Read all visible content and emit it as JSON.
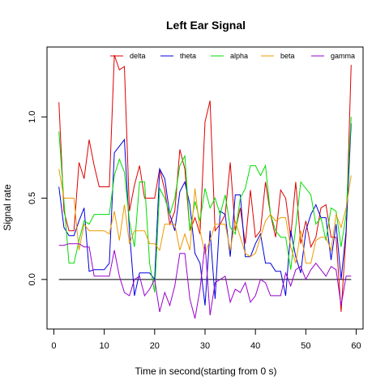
{
  "chart_data": {
    "type": "line",
    "title": "Left Ear Signal",
    "xlabel": "Time in second(starting from 0 s)",
    "ylabel": "Signal rate",
    "xlim": [
      -1.36,
      61.36
    ],
    "ylim": [
      -0.305,
      1.43
    ],
    "x_ticks": [
      0,
      10,
      20,
      30,
      40,
      50,
      60
    ],
    "y_ticks": [
      0.0,
      0.5,
      1.0
    ],
    "y_tick_labels": [
      "0.0",
      "0.5",
      "1.0"
    ],
    "legend_position": "top-right",
    "reference_line": {
      "y": 0,
      "x_range": [
        1,
        59
      ],
      "color": "#000000"
    },
    "x": [
      1,
      2,
      3,
      4,
      5,
      6,
      7,
      8,
      9,
      10,
      11,
      12,
      13,
      14,
      15,
      16,
      17,
      18,
      19,
      20,
      21,
      22,
      23,
      24,
      25,
      26,
      27,
      28,
      29,
      30,
      31,
      32,
      33,
      34,
      35,
      36,
      37,
      38,
      39,
      40,
      41,
      42,
      43,
      44,
      45,
      46,
      47,
      48,
      49,
      50,
      51,
      52,
      53,
      54,
      55,
      56,
      57,
      58,
      59
    ],
    "series": [
      {
        "name": "delta",
        "color": "#dd0000",
        "values": [
          1.09,
          0.42,
          0.3,
          0.3,
          0.72,
          0.62,
          0.86,
          0.7,
          0.57,
          0.57,
          0.57,
          1.38,
          1.29,
          1.31,
          0.42,
          0.58,
          0.7,
          0.5,
          0.5,
          0.5,
          0.68,
          0.55,
          0.34,
          0.42,
          0.8,
          0.68,
          0.3,
          0.38,
          0.28,
          0.97,
          1.1,
          0.3,
          0.34,
          0.4,
          0.72,
          0.3,
          0.44,
          0.22,
          0.55,
          0.26,
          0.3,
          0.6,
          0.4,
          0.26,
          0.55,
          0.5,
          0.26,
          0.6,
          0.22,
          0.36,
          0.2,
          0.26,
          0.44,
          0.46,
          0.26,
          0.26,
          -0.2,
          0.28,
          1.32
        ]
      },
      {
        "name": "theta",
        "color": "#0000dd",
        "values": [
          0.57,
          0.32,
          0.27,
          0.27,
          0.36,
          0.44,
          0.05,
          0.06,
          0.06,
          0.06,
          0.1,
          0.78,
          0.82,
          0.86,
          0.3,
          -0.1,
          0.04,
          0.04,
          0.04,
          0.0,
          0.68,
          0.62,
          0.4,
          0.3,
          0.54,
          0.6,
          0.46,
          0.16,
          0.1,
          -0.16,
          0.3,
          -0.12,
          0.42,
          0.4,
          0.14,
          0.52,
          0.52,
          0.14,
          0.14,
          0.22,
          0.28,
          0.1,
          0.1,
          0.05,
          0.05,
          -0.1,
          0.3,
          0.14,
          0.04,
          0.3,
          0.4,
          0.46,
          0.38,
          0.38,
          0.12,
          0.34,
          0.0,
          0.3,
          0.96
        ]
      },
      {
        "name": "alpha",
        "color": "#00dd00",
        "values": [
          0.91,
          0.48,
          0.1,
          0.1,
          0.24,
          0.36,
          0.34,
          0.4,
          0.4,
          0.4,
          0.4,
          0.64,
          0.74,
          0.66,
          0.36,
          0.2,
          0.6,
          0.6,
          0.1,
          -0.08,
          0.56,
          0.5,
          0.4,
          0.5,
          0.7,
          0.76,
          0.3,
          0.48,
          0.36,
          0.56,
          0.44,
          0.5,
          0.4,
          0.52,
          0.32,
          0.28,
          0.5,
          0.56,
          0.7,
          0.7,
          0.64,
          0.7,
          0.4,
          0.3,
          0.26,
          0.26,
          0.06,
          0.32,
          0.6,
          0.56,
          0.52,
          0.34,
          0.38,
          0.24,
          0.44,
          0.42,
          0.2,
          0.4,
          1.0
        ]
      },
      {
        "name": "beta",
        "color": "#ee9900",
        "values": [
          0.68,
          0.5,
          0.5,
          0.5,
          0.18,
          0.34,
          0.3,
          0.3,
          0.3,
          0.3,
          0.28,
          0.42,
          0.24,
          0.46,
          0.22,
          0.3,
          0.3,
          0.3,
          0.22,
          0.22,
          0.18,
          0.34,
          0.34,
          0.34,
          0.18,
          0.28,
          0.18,
          0.56,
          0.3,
          0.16,
          0.24,
          0.34,
          0.34,
          0.34,
          0.18,
          0.36,
          0.26,
          0.16,
          0.14,
          0.16,
          0.26,
          0.36,
          0.4,
          0.36,
          0.38,
          0.38,
          0.2,
          0.1,
          0.3,
          0.1,
          0.1,
          0.24,
          0.26,
          0.26,
          0.18,
          0.4,
          0.32,
          0.44,
          0.64
        ]
      },
      {
        "name": "gamma",
        "color": "#9900cc",
        "values": [
          0.21,
          0.21,
          0.22,
          0.22,
          0.22,
          0.2,
          0.2,
          0.02,
          0.02,
          0.02,
          0.02,
          0.18,
          0.02,
          -0.08,
          -0.1,
          0.0,
          0.02,
          -0.1,
          -0.06,
          0.0,
          -0.2,
          -0.08,
          -0.16,
          -0.04,
          0.16,
          0.16,
          -0.12,
          -0.24,
          -0.06,
          0.22,
          -0.22,
          -0.02,
          0.0,
          0.02,
          -0.14,
          -0.06,
          -0.08,
          -0.02,
          -0.14,
          -0.1,
          0.0,
          -0.02,
          -0.1,
          -0.1,
          -0.1,
          0.04,
          -0.04,
          0.06,
          0.08,
          0.0,
          0.06,
          0.1,
          0.06,
          0.02,
          0.08,
          0.06,
          -0.16,
          0.02,
          0.02
        ]
      }
    ]
  }
}
